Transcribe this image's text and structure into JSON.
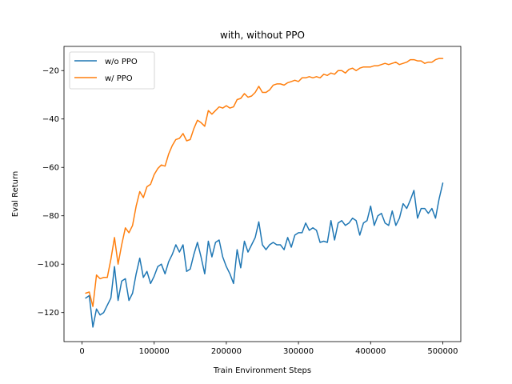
{
  "chart_data": {
    "type": "line",
    "title": "with, without PPO",
    "xlabel": "Train Environment Steps",
    "ylabel": "Eval Return",
    "xlim": [
      -25000,
      525000
    ],
    "ylim": [
      -132,
      -10
    ],
    "xticks": [
      0,
      100000,
      200000,
      300000,
      400000,
      500000
    ],
    "xtick_labels": [
      "0",
      "100000",
      "200000",
      "300000",
      "400000",
      "500000"
    ],
    "yticks": [
      -120,
      -100,
      -80,
      -60,
      -40,
      -20
    ],
    "ytick_labels": [
      "−120",
      "−100",
      "−80",
      "−60",
      "−40",
      "−20"
    ],
    "grid": false,
    "legend_position": "upper-left",
    "series": [
      {
        "name": "w/o PPO",
        "color": "#1f77b4",
        "x": [
          5000,
          10000,
          15000,
          20000,
          25000,
          30000,
          35000,
          40000,
          45000,
          50000,
          55000,
          60000,
          65000,
          70000,
          75000,
          80000,
          85000,
          90000,
          95000,
          100000,
          105000,
          110000,
          115000,
          120000,
          125000,
          130000,
          135000,
          140000,
          145000,
          150000,
          155000,
          160000,
          165000,
          170000,
          175000,
          180000,
          185000,
          190000,
          195000,
          200000,
          205000,
          210000,
          215000,
          220000,
          225000,
          230000,
          235000,
          240000,
          245000,
          250000,
          255000,
          260000,
          265000,
          270000,
          275000,
          280000,
          285000,
          290000,
          295000,
          300000,
          305000,
          310000,
          315000,
          320000,
          325000,
          330000,
          335000,
          340000,
          345000,
          350000,
          355000,
          360000,
          365000,
          370000,
          375000,
          380000,
          385000,
          390000,
          395000,
          400000,
          405000,
          410000,
          415000,
          420000,
          425000,
          430000,
          435000,
          440000,
          445000,
          450000,
          455000,
          460000,
          465000,
          470000,
          475000,
          480000,
          485000,
          490000,
          495000,
          500000
        ],
        "y": [
          -114,
          -113,
          -126,
          -118.5,
          -121,
          -120,
          -117,
          -114,
          -101,
          -115,
          -107,
          -106,
          -115,
          -112,
          -104,
          -97.5,
          -105.5,
          -103,
          -108,
          -105,
          -101,
          -100,
          -104,
          -99,
          -96,
          -92,
          -95,
          -92,
          -103,
          -102,
          -96,
          -91,
          -97,
          -104,
          -90.5,
          -97,
          -91,
          -90,
          -97,
          -101,
          -104,
          -108,
          -94,
          -101.5,
          -90.5,
          -95,
          -92,
          -89,
          -82.5,
          -92,
          -94,
          -92,
          -91,
          -92,
          -92,
          -94,
          -89,
          -93,
          -88,
          -87,
          -87,
          -83,
          -86,
          -85,
          -86,
          -91,
          -90.5,
          -91,
          -82,
          -90,
          -83,
          -82,
          -84,
          -83,
          -81,
          -82,
          -88,
          -83,
          -82,
          -76,
          -84,
          -80,
          -79,
          -83,
          -84,
          -78,
          -84,
          -81,
          -75,
          -77,
          -73.5,
          -69.5,
          -81,
          -77,
          -77,
          -79,
          -77,
          -81,
          -73,
          -66.5
        ]
      },
      {
        "name": "w/ PPO",
        "color": "#ff7f0e",
        "x": [
          5000,
          10000,
          15000,
          20000,
          25000,
          30000,
          35000,
          40000,
          45000,
          50000,
          55000,
          60000,
          65000,
          70000,
          75000,
          80000,
          85000,
          90000,
          95000,
          100000,
          105000,
          110000,
          115000,
          120000,
          125000,
          130000,
          135000,
          140000,
          145000,
          150000,
          155000,
          160000,
          165000,
          170000,
          175000,
          180000,
          185000,
          190000,
          195000,
          200000,
          205000,
          210000,
          215000,
          220000,
          225000,
          230000,
          235000,
          240000,
          245000,
          250000,
          255000,
          260000,
          265000,
          270000,
          275000,
          280000,
          285000,
          290000,
          295000,
          300000,
          305000,
          310000,
          315000,
          320000,
          325000,
          330000,
          335000,
          340000,
          345000,
          350000,
          355000,
          360000,
          365000,
          370000,
          375000,
          380000,
          385000,
          390000,
          395000,
          400000,
          405000,
          410000,
          415000,
          420000,
          425000,
          430000,
          435000,
          440000,
          445000,
          450000,
          455000,
          460000,
          465000,
          470000,
          475000,
          480000,
          485000,
          490000,
          495000,
          500000
        ],
        "y": [
          -112,
          -111.5,
          -117.5,
          -104.5,
          -106,
          -105.5,
          -105.5,
          -98,
          -89,
          -100,
          -92,
          -85,
          -87,
          -84,
          -76,
          -70,
          -72.5,
          -68,
          -67,
          -63,
          -60.5,
          -59,
          -59.5,
          -54.5,
          -51,
          -48.5,
          -48,
          -46,
          -49,
          -48.5,
          -44,
          -40.5,
          -41.5,
          -43,
          -36.5,
          -38,
          -36.5,
          -35,
          -35.5,
          -34.5,
          -35.5,
          -35,
          -32,
          -31.5,
          -29.5,
          -31,
          -30.5,
          -29,
          -26.5,
          -29,
          -29,
          -28,
          -26,
          -25.5,
          -25.5,
          -26,
          -25,
          -24.5,
          -24,
          -24.5,
          -23,
          -23,
          -22.5,
          -23,
          -22.5,
          -23,
          -21.5,
          -22,
          -21,
          -21.5,
          -20,
          -20,
          -21,
          -19.5,
          -19,
          -20,
          -19,
          -18.5,
          -18.5,
          -18.5,
          -18,
          -18,
          -17.5,
          -17,
          -17.5,
          -17,
          -16.5,
          -17.5,
          -17,
          -16.5,
          -15.5,
          -15.5,
          -16,
          -16,
          -17,
          -16.5,
          -16.5,
          -15.5,
          -15,
          -15
        ]
      }
    ]
  }
}
